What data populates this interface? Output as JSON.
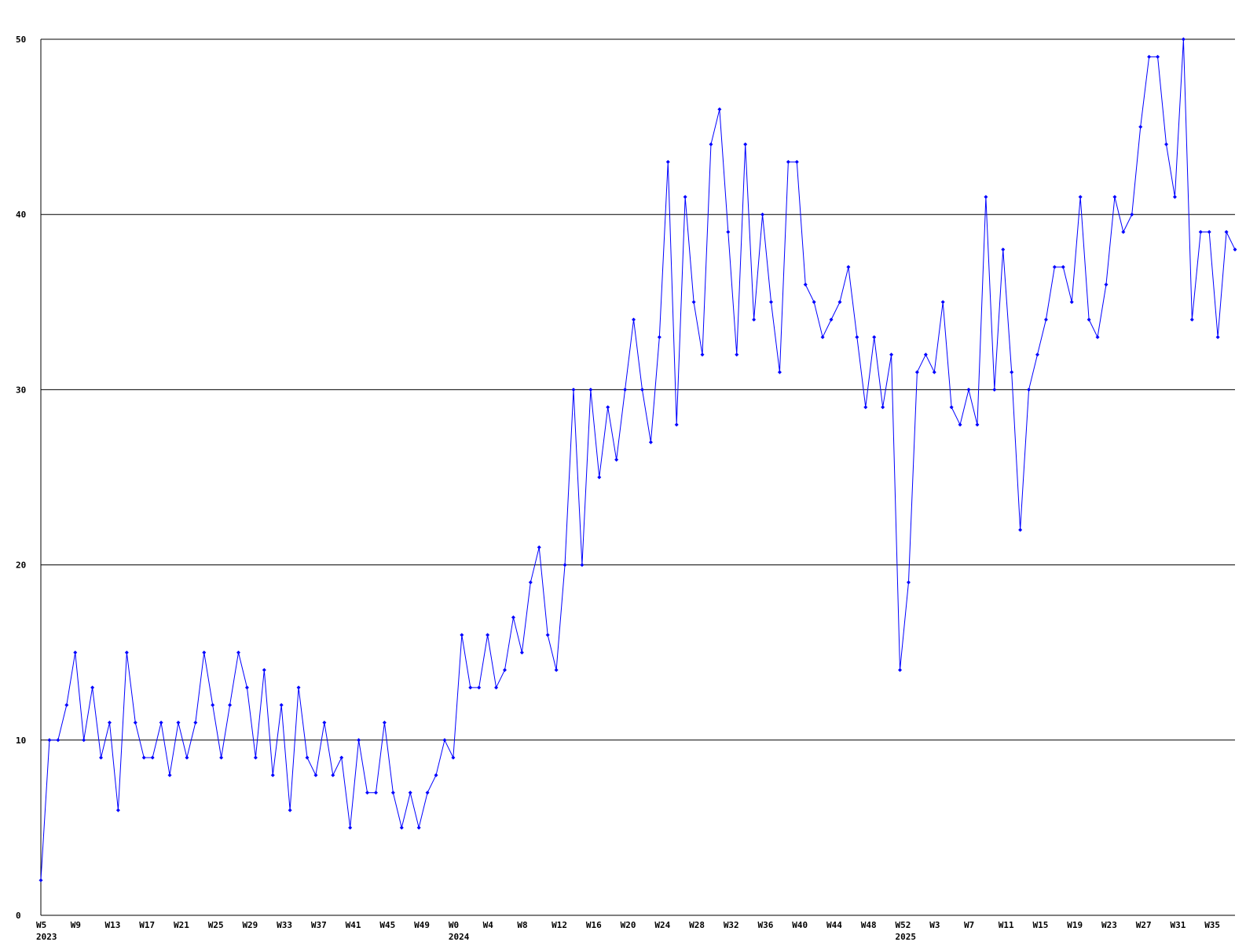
{
  "chart_data": {
    "type": "line",
    "categories": [
      "W5",
      null,
      null,
      null,
      "W9",
      null,
      null,
      null,
      "W13",
      null,
      null,
      null,
      "W17",
      null,
      null,
      null,
      "W21",
      null,
      null,
      null,
      "W25",
      null,
      null,
      null,
      "W29",
      null,
      null,
      null,
      "W33",
      null,
      null,
      null,
      "W37",
      null,
      null,
      null,
      "W41",
      null,
      null,
      null,
      "W45",
      null,
      null,
      null,
      "W49",
      null,
      null,
      null,
      "W0",
      null,
      null,
      null,
      "W4",
      null,
      null,
      null,
      "W8",
      null,
      null,
      null,
      "W12",
      null,
      null,
      null,
      "W16",
      null,
      null,
      null,
      "W20",
      null,
      null,
      null,
      "W24",
      null,
      null,
      null,
      "W28",
      null,
      null,
      null,
      "W32",
      null,
      null,
      null,
      "W36",
      null,
      null,
      null,
      "W40",
      null,
      null,
      null,
      "W44",
      null,
      null,
      null,
      "W48",
      null,
      null,
      null,
      "W52",
      null,
      null,
      null,
      "W3",
      null,
      null,
      null,
      "W7",
      null,
      null,
      null,
      "W11",
      null,
      null,
      null,
      "W15",
      null,
      null,
      null,
      "W19",
      null,
      null,
      null,
      "W23",
      null,
      null,
      null,
      "W27",
      null,
      null,
      null,
      "W31",
      null,
      null,
      null,
      "W35",
      null,
      null,
      null
    ],
    "years": [
      "2023",
      null,
      null,
      null,
      null,
      null,
      null,
      null,
      null,
      null,
      null,
      null,
      null,
      null,
      null,
      null,
      null,
      null,
      null,
      null,
      null,
      null,
      null,
      null,
      null,
      null,
      null,
      null,
      null,
      null,
      null,
      null,
      null,
      null,
      null,
      null,
      null,
      null,
      null,
      null,
      null,
      null,
      null,
      null,
      null,
      null,
      null,
      null,
      "2024",
      null,
      null,
      null,
      null,
      null,
      null,
      null,
      null,
      null,
      null,
      null,
      null,
      null,
      null,
      null,
      null,
      null,
      null,
      null,
      null,
      null,
      null,
      null,
      null,
      null,
      null,
      null,
      null,
      null,
      null,
      null,
      null,
      null,
      null,
      null,
      null,
      null,
      null,
      null,
      null,
      null,
      null,
      null,
      null,
      null,
      null,
      null,
      null,
      null,
      null,
      null,
      "2025",
      null,
      null,
      null,
      null,
      null,
      null,
      null,
      null,
      null,
      null,
      null,
      null,
      null,
      null,
      null,
      null,
      null,
      null,
      null,
      null,
      null,
      null,
      null,
      null,
      null,
      null,
      null,
      null,
      null,
      null,
      null,
      null,
      null,
      null,
      null,
      null,
      null,
      null,
      null
    ],
    "series": [
      {
        "color": "#0000ff",
        "values": [
          2,
          10,
          10,
          12,
          15,
          10,
          13,
          9,
          11,
          6,
          15,
          11,
          9,
          9,
          11,
          8,
          11,
          9,
          11,
          15,
          12,
          9,
          12,
          15,
          13,
          9,
          14,
          8,
          12,
          6,
          13,
          9,
          8,
          11,
          8,
          9,
          5,
          10,
          7,
          7,
          11,
          7,
          5,
          7,
          5,
          7,
          8,
          10,
          9,
          16,
          13,
          13,
          16,
          13,
          14,
          17,
          15,
          19,
          21,
          16,
          14,
          20,
          30,
          20,
          30,
          25,
          29,
          26,
          30,
          34,
          30,
          27,
          33,
          43,
          28,
          41,
          35,
          32,
          44,
          46,
          39,
          32,
          44,
          34,
          40,
          35,
          31,
          43,
          43,
          36,
          35,
          33,
          34,
          35,
          37,
          33,
          29,
          33,
          29,
          32,
          14,
          19,
          31,
          32,
          31,
          35,
          29,
          28,
          30,
          28,
          41,
          30,
          38,
          31,
          22,
          30,
          32,
          34,
          37,
          37,
          35,
          41,
          34,
          33,
          36,
          41,
          39,
          40,
          45,
          49,
          49,
          44,
          41,
          50,
          34,
          39,
          39,
          33,
          39,
          38
        ]
      }
    ],
    "ylim": [
      0,
      50
    ],
    "yticks": [
      0,
      10,
      20,
      30,
      40,
      50
    ],
    "grid": true
  }
}
